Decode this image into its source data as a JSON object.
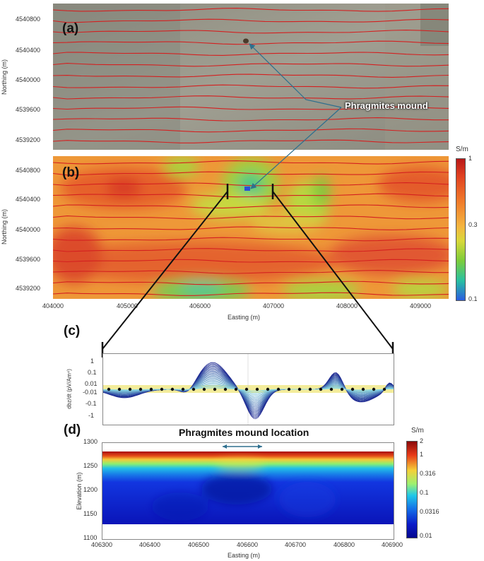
{
  "panels": {
    "a": {
      "letter": "(a)"
    },
    "b": {
      "letter": "(b)"
    },
    "c": {
      "letter": "(c)"
    },
    "d": {
      "letter": "(d)",
      "title": "Phragmites mound location"
    }
  },
  "annotation": {
    "label": "Phragmites mound"
  },
  "map_axes": {
    "ylabel": "Northing (m)",
    "xlabel": "Easting (m)",
    "northing_ticks": [
      "4540800",
      "4540400",
      "4540000",
      "4539600",
      "4539200"
    ],
    "easting_ticks": [
      "404000",
      "405000",
      "406000",
      "407000",
      "408000",
      "409000"
    ]
  },
  "colorbar_b": {
    "unit": "S/m",
    "labels": [
      "1",
      "0.3",
      "0.1"
    ]
  },
  "decay_axes": {
    "ylabel": "dbz/dt (pV/Am⁴)",
    "ticks": [
      "1",
      "0.1",
      "0.01",
      "-0.01",
      "-0.1",
      "-1"
    ]
  },
  "section_axes": {
    "ylabel": "Elevation (m)",
    "xlabel": "Easting (m)",
    "elev_ticks": [
      "1300",
      "1250",
      "1200",
      "1150",
      "1100"
    ],
    "easting_ticks": [
      "406300",
      "406400",
      "406500",
      "406600",
      "406700",
      "406800",
      "406900"
    ]
  },
  "colorbar_d": {
    "unit": "S/m",
    "labels": [
      "2",
      "1",
      "0.316",
      "0.1",
      "0.0316",
      "0.01"
    ]
  },
  "colors": {
    "flight_lines": "#d42020",
    "arrow": "#2e6f8e",
    "map_bg_red": "#e25a2a",
    "map_bg_orange": "#ef9a3a"
  }
}
